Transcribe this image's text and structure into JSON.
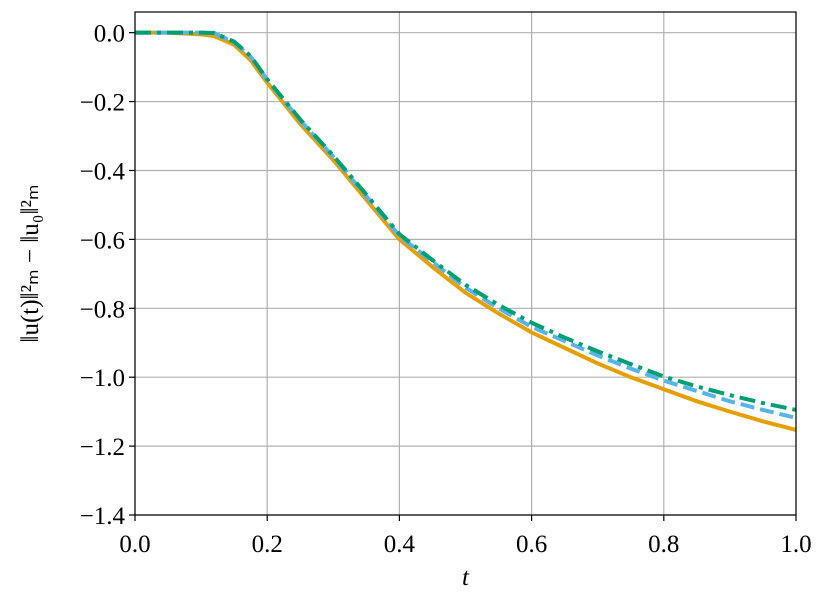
{
  "chart_data": {
    "type": "line",
    "xlabel": "t",
    "ylabel": "‖u(t)‖²ₘ − ‖u₀‖²ₘ",
    "x": [
      0,
      0.05,
      0.1,
      0.12,
      0.15,
      0.175,
      0.2,
      0.25,
      0.3,
      0.35,
      0.4,
      0.45,
      0.5,
      0.55,
      0.6,
      0.65,
      0.7,
      0.75,
      0.8,
      0.85,
      0.9,
      0.95,
      1.0
    ],
    "series": [
      {
        "color": "#e69f00",
        "dash": "solid",
        "values": [
          0,
          0,
          -0.005,
          -0.01,
          -0.035,
          -0.08,
          -0.145,
          -0.265,
          -0.37,
          -0.485,
          -0.6,
          -0.68,
          -0.755,
          -0.815,
          -0.87,
          -0.915,
          -0.96,
          -1.0,
          -1.035,
          -1.07,
          -1.1,
          -1.128,
          -1.153
        ]
      },
      {
        "color": "#56b4e9",
        "dash": "dashed",
        "values": [
          0,
          0,
          0,
          -0.002,
          -0.028,
          -0.07,
          -0.137,
          -0.255,
          -0.36,
          -0.475,
          -0.59,
          -0.665,
          -0.74,
          -0.8,
          -0.854,
          -0.895,
          -0.937,
          -0.975,
          -1.01,
          -1.04,
          -1.07,
          -1.095,
          -1.118
        ]
      },
      {
        "color": "#009e73",
        "dash": "dashdot",
        "values": [
          0,
          0,
          0,
          -0.001,
          -0.026,
          -0.068,
          -0.135,
          -0.252,
          -0.357,
          -0.47,
          -0.585,
          -0.66,
          -0.732,
          -0.79,
          -0.842,
          -0.885,
          -0.925,
          -0.962,
          -0.998,
          -1.027,
          -1.052,
          -1.075,
          -1.095
        ]
      }
    ],
    "xlim": [
      0,
      1.0
    ],
    "ylim": [
      -1.4,
      0.06
    ],
    "xticks": [
      {
        "value": 0,
        "label": "0.0"
      },
      0.2,
      0.4,
      0.6,
      0.8,
      {
        "value": 1.0,
        "label": "1.0"
      }
    ],
    "yticks": [
      {
        "value": 0,
        "label": "0.0"
      },
      {
        "value": -0.2,
        "label": "−0.2"
      },
      {
        "value": -0.4,
        "label": "−0.4"
      },
      {
        "value": -0.6,
        "label": "−0.6"
      },
      {
        "value": -0.8,
        "label": "−0.8"
      },
      {
        "value": -1.0,
        "label": "−1.0"
      },
      {
        "value": -1.2,
        "label": "−1.2"
      },
      {
        "value": -1.4,
        "label": "−1.4"
      }
    ],
    "grid": true
  }
}
